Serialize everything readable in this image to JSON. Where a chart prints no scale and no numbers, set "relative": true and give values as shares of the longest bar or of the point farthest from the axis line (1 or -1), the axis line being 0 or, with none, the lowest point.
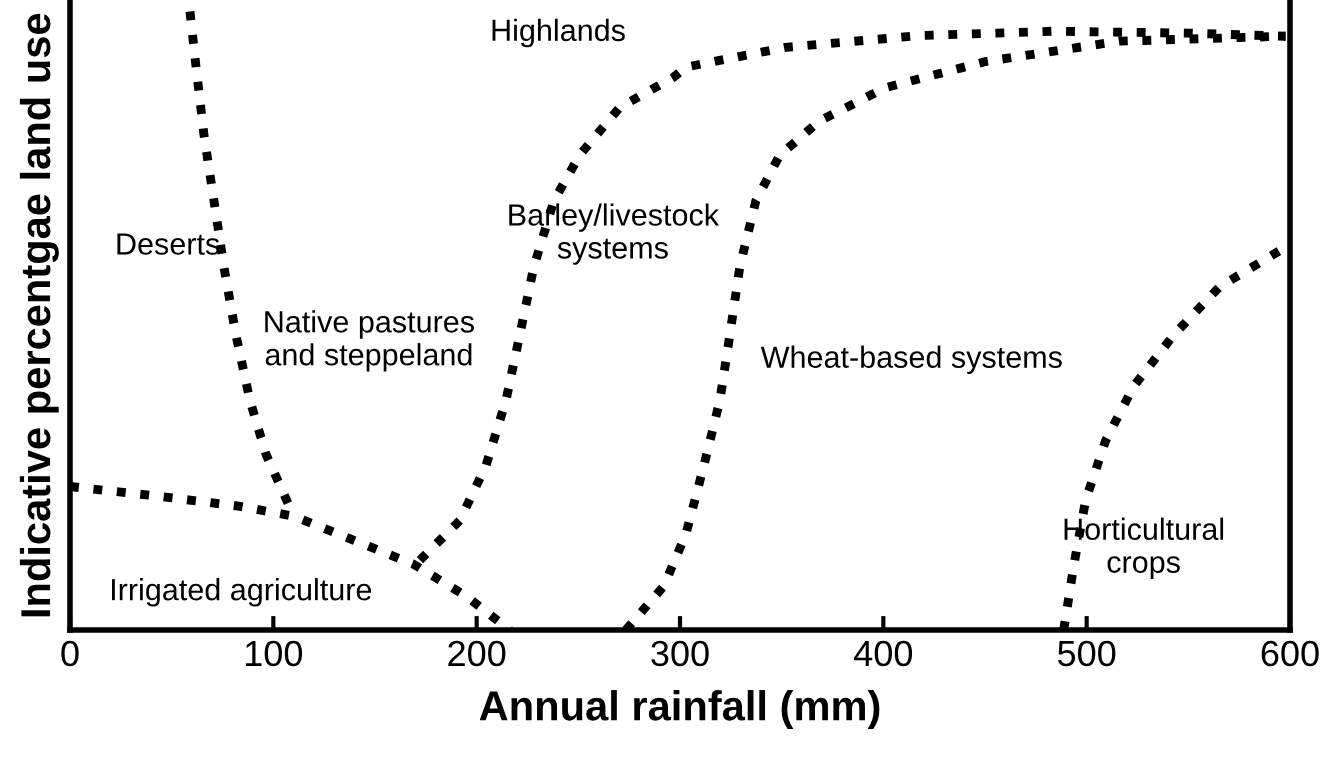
{
  "chart_data": {
    "type": "line",
    "relative": true,
    "xlabel": "Annual rainfall (mm)",
    "ylabel": "Indicative percentgae land use",
    "xlim": [
      0,
      600
    ],
    "xticks": [
      0,
      100,
      200,
      300,
      400,
      500,
      600
    ],
    "marker": "none",
    "line_style": "dotted",
    "grid": false,
    "legend": false,
    "series": [
      {
        "color": "#000000",
        "x": [
          59.0,
          62.0,
          65.9,
          70.8,
          75.7,
          81.6,
          88.5,
          96.4,
          110.1
        ],
        "values": [
          1.0,
          0.91,
          0.8,
          0.694,
          0.587,
          0.477,
          0.371,
          0.284,
          0.184
        ]
      },
      {
        "color": "#000000",
        "x": [
          0,
          44.2,
          83.6,
          110.1,
          139.6,
          169.1,
          194.7,
          216.3
        ],
        "values": [
          0.232,
          0.216,
          0.2,
          0.184,
          0.145,
          0.106,
          0.055,
          0
        ]
      },
      {
        "color": "#000000",
        "x": [
          172.1,
          191.7,
          204.5,
          214.4,
          221.2,
          228.1,
          238.0,
          250.7,
          270.4,
          297.0,
          302.9,
          352.0,
          417.9,
          483.8,
          548.7,
          597.8
        ],
        "values": [
          0.113,
          0.177,
          0.265,
          0.371,
          0.477,
          0.587,
          0.694,
          0.768,
          0.845,
          0.894,
          0.91,
          0.942,
          0.961,
          0.968,
          0.965,
          0.96
        ]
      },
      {
        "color": "#000000",
        "x": [
          273.4,
          292.0,
          302.9,
          311.7,
          319.6,
          324.5,
          329.4,
          337.3,
          349.1,
          368.7,
          401.2,
          450.3,
          516.2,
          597.8
        ],
        "values": [
          0,
          0.071,
          0.155,
          0.265,
          0.371,
          0.477,
          0.587,
          0.694,
          0.768,
          0.823,
          0.877,
          0.919,
          0.952,
          0.96
        ]
      },
      {
        "color": "#000000",
        "x": [
          488.7,
          493.6,
          499.5,
          509.3,
          523.1,
          542.8,
          565.4,
          597.8
        ],
        "values": [
          0,
          0.103,
          0.21,
          0.306,
          0.394,
          0.477,
          0.555,
          0.619
        ]
      }
    ],
    "annotations": [
      "Highlands",
      "Deserts",
      "Native pastures\nand steppeland",
      "Irrigated agriculture",
      "Barley/livestock\nsystems",
      "Wheat-based systems",
      "Horticultural\ncrops"
    ]
  }
}
